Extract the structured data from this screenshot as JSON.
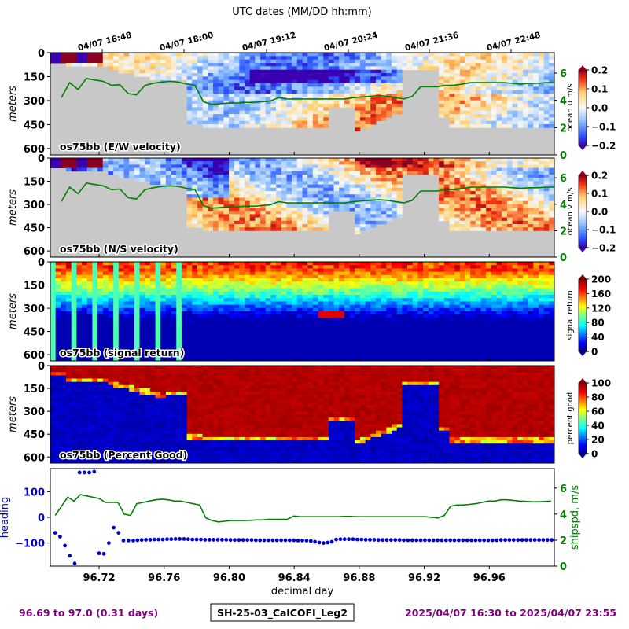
{
  "figure": {
    "top_axis_label": "UTC dates (MM/DD hh:mm)",
    "top_ticks": [
      "04/07 16:48",
      "04/07 18:00",
      "04/07 19:12",
      "04/07 20:24",
      "04/07 21:36",
      "04/07 22:48"
    ],
    "footer_left": "96.69 to 97.0 (0.31 days)",
    "footer_center": "SH-25-03_CalCOFI_Leg2",
    "footer_right": "2025/04/07 16:30 to 2025/04/07 23:55",
    "colors": {
      "footer_purple": "#800080",
      "speed_green": "#008000",
      "heading_blue": "#0000cc",
      "bottom_gray": "#c8c8c8"
    }
  },
  "chart_data": [
    {
      "type": "heatmap",
      "panel_label": "os75bb (E/W velocity)",
      "ylabel": "meters",
      "yticks": [
        0,
        150,
        300,
        450,
        600
      ],
      "ylim": [
        640,
        0
      ],
      "colorbar": {
        "label": "ocean u m/s",
        "ticks": [
          "0.2",
          "0.1",
          "0.0",
          "−0.1",
          "−0.2"
        ],
        "range": [
          -0.2,
          0.2
        ],
        "colormap": "RdYlBu_r"
      },
      "speed_axis": {
        "ticks": [
          "6",
          "4",
          "2",
          "0"
        ],
        "range": [
          0,
          7.5
        ]
      },
      "shipspd": [
        4.2,
        5.3,
        4.8,
        5.6,
        5.5,
        5.4,
        5.1,
        5.15,
        4.5,
        4.4,
        5.1,
        5.25,
        5.35,
        5.4,
        5.35,
        5.2,
        5.1,
        3.9,
        3.7,
        3.75,
        3.8,
        3.8,
        3.85,
        3.85,
        3.9,
        3.95,
        4.2,
        4.1,
        4.1,
        4.1,
        4.1,
        4.1,
        4.1,
        4.1,
        4.1,
        4.2,
        4.25,
        4.3,
        4.35,
        4.3,
        4.2,
        4.1,
        4.3,
        5.0,
        5.0,
        5.0,
        5.1,
        5.1,
        5.2,
        5.3,
        5.3,
        5.3,
        5.3,
        5.3,
        5.25,
        5.2,
        5.25,
        5.25,
        5.3,
        5.3
      ]
    },
    {
      "type": "heatmap",
      "panel_label": "os75bb (N/S velocity)",
      "ylabel": "meters",
      "yticks": [
        0,
        150,
        300,
        450,
        600
      ],
      "ylim": [
        640,
        0
      ],
      "colorbar": {
        "label": "ocean v m/s",
        "ticks": [
          "0.2",
          "0.1",
          "0.0",
          "−0.1",
          "−0.2"
        ],
        "range": [
          -0.2,
          0.2
        ],
        "colormap": "RdYlBu_r"
      },
      "speed_axis": {
        "ticks": [
          "6",
          "4",
          "2",
          "0"
        ],
        "range": [
          0,
          7.5
        ]
      },
      "shipspd": [
        4.2,
        5.3,
        4.8,
        5.6,
        5.5,
        5.4,
        5.1,
        5.15,
        4.5,
        4.4,
        5.1,
        5.25,
        5.35,
        5.4,
        5.35,
        5.2,
        5.1,
        3.9,
        3.7,
        3.75,
        3.8,
        3.8,
        3.85,
        3.85,
        3.9,
        3.95,
        4.2,
        4.1,
        4.1,
        4.1,
        4.1,
        4.1,
        4.1,
        4.1,
        4.1,
        4.2,
        4.25,
        4.3,
        4.35,
        4.3,
        4.2,
        4.1,
        4.3,
        5.0,
        5.0,
        5.0,
        5.1,
        5.1,
        5.2,
        5.3,
        5.3,
        5.3,
        5.3,
        5.3,
        5.25,
        5.2,
        5.25,
        5.25,
        5.3,
        5.3
      ]
    },
    {
      "type": "heatmap",
      "panel_label": "os75bb (signal return)",
      "ylabel": "meters",
      "yticks": [
        0,
        150,
        300,
        450,
        600
      ],
      "ylim": [
        640,
        0
      ],
      "colorbar": {
        "label": "signal return",
        "ticks": [
          "200",
          "160",
          "120",
          "80",
          "40",
          "0"
        ],
        "range": [
          0,
          200
        ],
        "colormap": "jet"
      }
    },
    {
      "type": "heatmap",
      "panel_label": "os75bb (Percent Good)",
      "ylabel": "meters",
      "yticks": [
        0,
        150,
        300,
        450,
        600
      ],
      "ylim": [
        640,
        0
      ],
      "colorbar": {
        "label": "percent good",
        "ticks": [
          "100",
          "80",
          "60",
          "40",
          "20",
          "0"
        ],
        "range": [
          0,
          100
        ],
        "colormap": "jet"
      }
    },
    {
      "type": "scatter",
      "xlabel": "decimal day",
      "ylabel": "heading",
      "ylabel_right": "shipspd, m/s",
      "xlim": [
        96.69,
        97.0
      ],
      "xticks": [
        "96.72",
        "96.76",
        "96.80",
        "96.84",
        "96.88",
        "96.92",
        "96.96"
      ],
      "xtick_values": [
        96.72,
        96.76,
        96.8,
        96.84,
        96.88,
        96.92,
        96.96
      ],
      "yticks": [
        "100",
        "0",
        "−100"
      ],
      "ytick_values": [
        100,
        0,
        -100
      ],
      "ylim": [
        -190,
        190
      ],
      "right_ticks": [
        "6",
        "4",
        "2",
        "0"
      ],
      "right_tick_values": [
        6,
        4,
        2,
        0
      ],
      "right_lim": [
        0,
        7.5
      ],
      "heading_x": [
        96.693,
        96.696,
        96.699,
        96.702,
        96.705,
        96.708,
        96.711,
        96.714,
        96.717,
        96.72,
        96.723,
        96.726,
        96.729,
        96.732,
        96.735,
        96.738
      ],
      "heading_y": [
        -60,
        -75,
        -110,
        -150,
        -180,
        175,
        175,
        175,
        178,
        -140,
        -142,
        -100,
        -40,
        -60,
        -90,
        -90
      ],
      "heading_x2": [
        96.741,
        96.7436,
        96.7462,
        96.7488,
        96.7514,
        96.754,
        96.7566,
        96.7592,
        96.7618,
        96.7644,
        96.767,
        96.7696,
        96.7722,
        96.7748,
        96.7774,
        96.78,
        96.7826,
        96.7852,
        96.7878,
        96.7904,
        96.793,
        96.7956,
        96.7982,
        96.8008,
        96.8034,
        96.806,
        96.8086,
        96.8112,
        96.8138,
        96.8164,
        96.819,
        96.8216,
        96.8242,
        96.8268,
        96.8294,
        96.832,
        96.8346,
        96.8372,
        96.8398,
        96.8424,
        96.845,
        96.8476,
        96.8502,
        96.8528,
        96.8554,
        96.858,
        96.8606,
        96.8632,
        96.8658,
        96.8684,
        96.871,
        96.8736,
        96.8762,
        96.8788,
        96.8814,
        96.884,
        96.8866,
        96.8892,
        96.8918,
        96.8944,
        96.897,
        96.8996,
        96.9022,
        96.9048,
        96.9074,
        96.91,
        96.9126,
        96.9152,
        96.9178,
        96.9204,
        96.923,
        96.9256,
        96.9282,
        96.9308,
        96.9334,
        96.936,
        96.9386,
        96.9412,
        96.9438,
        96.9464,
        96.949,
        96.9516,
        96.9542,
        96.9568,
        96.9594,
        96.962,
        96.9646,
        96.9672,
        96.9698,
        96.9724,
        96.975,
        96.9776,
        96.9802,
        96.9828,
        96.9854,
        96.988,
        96.9906,
        96.9932,
        96.9958,
        96.9984
      ],
      "heading_y2": [
        -90,
        -89,
        -88,
        -87,
        -87,
        -86,
        -86,
        -86,
        -85,
        -85,
        -84,
        -84,
        -84,
        -85,
        -86,
        -86,
        -86,
        -87,
        -87,
        -87,
        -87,
        -87,
        -87,
        -88,
        -88,
        -88,
        -88,
        -88,
        -88,
        -89,
        -89,
        -89,
        -89,
        -89,
        -89,
        -89,
        -89,
        -89,
        -89,
        -90,
        -90,
        -90,
        -92,
        -95,
        -98,
        -100,
        -98,
        -95,
        -86,
        -85,
        -85,
        -85,
        -85,
        -86,
        -86,
        -87,
        -87,
        -87,
        -88,
        -88,
        -88,
        -88,
        -88,
        -88,
        -89,
        -89,
        -89,
        -89,
        -89,
        -89,
        -89,
        -89,
        -89,
        -89,
        -89,
        -89,
        -89,
        -89,
        -89,
        -89,
        -89,
        -89,
        -89,
        -89,
        -89,
        -89,
        -89,
        -88,
        -88,
        -88,
        -88,
        -88,
        -88,
        -88,
        -88,
        -88,
        -88,
        -88,
        -88,
        -88
      ],
      "shipspd": [
        3.9,
        4.6,
        5.3,
        5.0,
        5.5,
        5.4,
        5.3,
        5.2,
        4.9,
        4.9,
        4.9,
        4.0,
        3.9,
        4.8,
        4.9,
        5.0,
        5.1,
        5.15,
        5.1,
        5.0,
        5.0,
        4.9,
        4.8,
        4.7,
        3.7,
        3.5,
        3.4,
        3.45,
        3.5,
        3.5,
        3.5,
        3.52,
        3.55,
        3.55,
        3.6,
        3.6,
        3.6,
        3.6,
        3.85,
        3.8,
        3.8,
        3.8,
        3.8,
        3.8,
        3.8,
        3.8,
        3.82,
        3.82,
        3.8,
        3.8,
        3.8,
        3.8,
        3.8,
        3.8,
        3.8,
        3.8,
        3.8,
        3.8,
        3.8,
        3.8,
        3.75,
        3.7,
        3.9,
        4.6,
        4.7,
        4.7,
        4.75,
        4.8,
        4.9,
        5.0,
        5.0,
        5.1,
        5.1,
        5.05,
        5.0,
        4.98,
        4.95,
        4.95,
        4.97,
        5.0
      ]
    }
  ]
}
